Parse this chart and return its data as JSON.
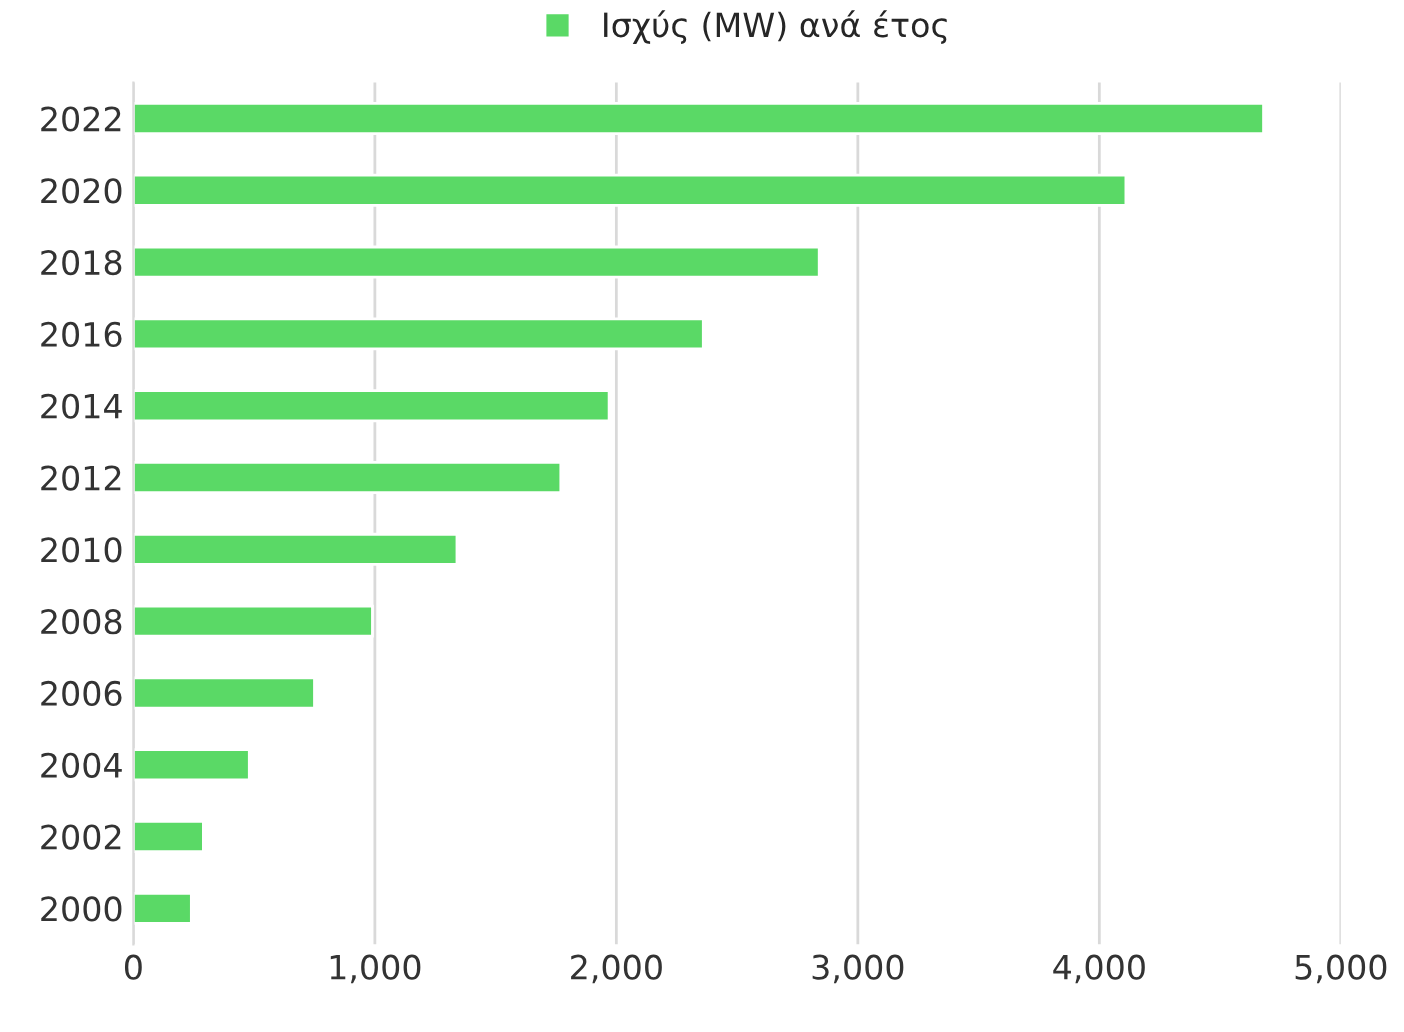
{
  "chart_data": {
    "type": "bar",
    "orientation": "horizontal",
    "categories": [
      "2022",
      "2020",
      "2018",
      "2016",
      "2014",
      "2012",
      "2010",
      "2008",
      "2006",
      "2004",
      "2002",
      "2000"
    ],
    "series": [
      {
        "name": "Ισχύς (MW) ανά έτος",
        "color": "#5ad966",
        "values": [
          4680,
          4110,
          2840,
          2360,
          1970,
          1770,
          1340,
          990,
          750,
          480,
          290,
          240
        ]
      }
    ],
    "xlim": [
      0,
      5000
    ],
    "xticks": [
      {
        "value": 0,
        "label": "0"
      },
      {
        "value": 1000,
        "label": "1,000"
      },
      {
        "value": 2000,
        "label": "2,000"
      },
      {
        "value": 3000,
        "label": "3,000"
      },
      {
        "value": 4000,
        "label": "4,000"
      },
      {
        "value": 5000,
        "label": "5,000"
      }
    ],
    "grid": "x",
    "legend": "top"
  }
}
